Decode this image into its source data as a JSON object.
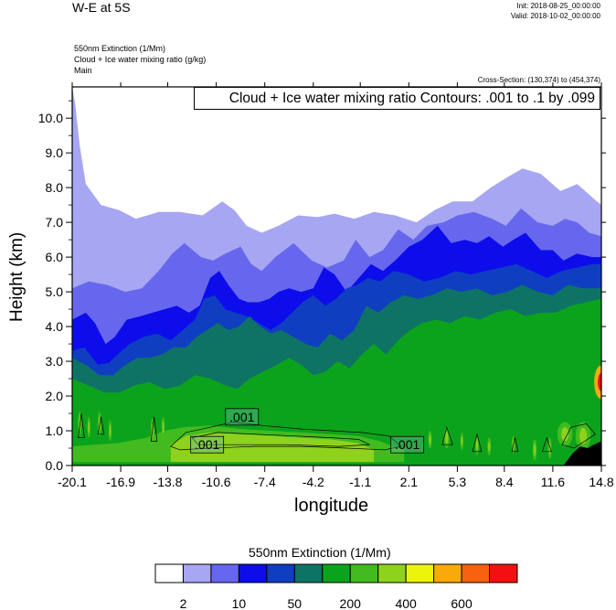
{
  "header": {
    "title": "W-E at 5S",
    "init": "Init: 2018-08-25_00:00:00",
    "valid": "Valid: 2018-10-02_00:00:00",
    "field_lines": [
      "550nm Extinction   (1/Mm)",
      "Cloud + Ice water mixing ratio   (g/kg)",
      "Main"
    ],
    "cross_section": "Cross-Section: (130,374) to (454,374)",
    "contour_info": "Cloud + Ice water mixing ratio Contours: .001 to .1 by .099"
  },
  "chart_data": {
    "type": "heatmap",
    "xlabel": "longitude",
    "ylabel": "Height (km)",
    "xlim": [
      -20.1,
      14.8
    ],
    "ylim": [
      0.0,
      10.9
    ],
    "x_ticks": [
      "-20.1",
      "-16.9",
      "-13.8",
      "-10.6",
      "-7.4",
      "-4.2",
      "-1.1",
      "2.1",
      "5.3",
      "8.4",
      "11.6",
      "14.8"
    ],
    "y_ticks": [
      "0.0",
      "1.0",
      "2.0",
      "3.0",
      "4.0",
      "5.0",
      "6.0",
      "7.0",
      "8.0",
      "9.0",
      "10.0"
    ],
    "contour_labels": [
      {
        "text": ".001",
        "x": -8.9,
        "y": 1.4
      },
      {
        "text": ".001",
        "x": -11.2,
        "y": 0.6
      },
      {
        "text": ".001",
        "x": 2.0,
        "y": 0.6
      }
    ],
    "colorbar": {
      "title": "550nm Extinction  (1/Mm)",
      "colors": [
        "#ffffff",
        "#a6a6f2",
        "#6767ee",
        "#0d0deb",
        "#0f3fc0",
        "#0e7364",
        "#0ca31c",
        "#42bb1e",
        "#8ed21d",
        "#ecf40c",
        "#f8aa0b",
        "#f6620f",
        "#f40f12"
      ],
      "labels": [
        "2",
        "10",
        "50",
        "200",
        "400",
        "600"
      ]
    },
    "layers": [
      {
        "name": "white",
        "color": "#ffffff",
        "top": [
          [
            -20.1,
            10.9
          ],
          [
            14.8,
            10.9
          ]
        ]
      },
      {
        "name": "lavender",
        "color": "#a6a6f2",
        "top": [
          [
            -20.1,
            10.9
          ],
          [
            -19.9,
            10.4
          ],
          [
            -19.6,
            9.2
          ],
          [
            -19.2,
            8.1
          ],
          [
            -18.2,
            7.5
          ],
          [
            -17.0,
            7.35
          ],
          [
            -15.9,
            7.1
          ],
          [
            -14.4,
            7.3
          ],
          [
            -13.0,
            7.3
          ],
          [
            -11.5,
            7.2
          ],
          [
            -10.2,
            7.6
          ],
          [
            -9.4,
            7.35
          ],
          [
            -8.6,
            6.9
          ],
          [
            -7.6,
            6.7
          ],
          [
            -6.5,
            6.9
          ],
          [
            -5.2,
            7.2
          ],
          [
            -3.9,
            7.15
          ],
          [
            -2.8,
            7.25
          ],
          [
            -1.5,
            7.1
          ],
          [
            -0.2,
            7.3
          ],
          [
            1.2,
            7.2
          ],
          [
            2.6,
            7.0
          ],
          [
            3.8,
            7.35
          ],
          [
            5.0,
            7.6
          ],
          [
            6.3,
            7.6
          ],
          [
            7.5,
            8.0
          ],
          [
            8.6,
            8.3
          ],
          [
            9.6,
            8.55
          ],
          [
            10.8,
            8.4
          ],
          [
            12.1,
            7.9
          ],
          [
            13.2,
            8.1
          ],
          [
            14.0,
            7.8
          ],
          [
            14.5,
            7.6
          ],
          [
            14.8,
            7.5
          ]
        ]
      },
      {
        "name": "medium-blue",
        "color": "#6767ee",
        "top": [
          [
            -20.1,
            5.1
          ],
          [
            -19.0,
            5.3
          ],
          [
            -17.8,
            5.2
          ],
          [
            -16.6,
            5.0
          ],
          [
            -15.5,
            5.1
          ],
          [
            -14.4,
            5.6
          ],
          [
            -13.5,
            6.1
          ],
          [
            -12.7,
            6.4
          ],
          [
            -11.6,
            6.0
          ],
          [
            -10.8,
            5.9
          ],
          [
            -10.0,
            6.1
          ],
          [
            -9.0,
            6.3
          ],
          [
            -8.3,
            5.8
          ],
          [
            -7.6,
            5.6
          ],
          [
            -6.7,
            6.0
          ],
          [
            -5.5,
            6.4
          ],
          [
            -4.3,
            5.9
          ],
          [
            -3.3,
            5.7
          ],
          [
            -2.2,
            5.9
          ],
          [
            -1.4,
            6.5
          ],
          [
            -0.5,
            6.0
          ],
          [
            0.4,
            6.2
          ],
          [
            1.4,
            6.8
          ],
          [
            2.4,
            6.5
          ],
          [
            3.3,
            6.9
          ],
          [
            4.4,
            7.0
          ],
          [
            5.3,
            7.2
          ],
          [
            6.4,
            7.3
          ],
          [
            7.6,
            7.1
          ],
          [
            8.5,
            6.9
          ],
          [
            9.5,
            7.4
          ],
          [
            10.6,
            7.0
          ],
          [
            11.6,
            6.9
          ],
          [
            12.4,
            7.1
          ],
          [
            13.2,
            7.0
          ],
          [
            14.0,
            6.7
          ],
          [
            14.8,
            6.6
          ]
        ]
      },
      {
        "name": "blue",
        "color": "#0d0deb",
        "top": [
          [
            -20.1,
            4.2
          ],
          [
            -19.2,
            4.4
          ],
          [
            -18.6,
            4.1
          ],
          [
            -17.9,
            3.5
          ],
          [
            -17.3,
            3.7
          ],
          [
            -16.5,
            4.2
          ],
          [
            -15.6,
            4.3
          ],
          [
            -14.8,
            4.4
          ],
          [
            -14.0,
            4.5
          ],
          [
            -13.2,
            4.6
          ],
          [
            -12.4,
            4.4
          ],
          [
            -11.7,
            4.6
          ],
          [
            -11.0,
            5.4
          ],
          [
            -10.4,
            5.6
          ],
          [
            -9.8,
            5.2
          ],
          [
            -9.1,
            4.8
          ],
          [
            -8.5,
            4.7
          ],
          [
            -7.8,
            4.7
          ],
          [
            -7.1,
            4.8
          ],
          [
            -6.5,
            5.0
          ],
          [
            -5.8,
            5.1
          ],
          [
            -5.0,
            5.0
          ],
          [
            -4.2,
            5.1
          ],
          [
            -3.5,
            5.7
          ],
          [
            -2.8,
            5.5
          ],
          [
            -2.0,
            5.0
          ],
          [
            -1.2,
            5.4
          ],
          [
            -0.4,
            5.8
          ],
          [
            0.4,
            5.6
          ],
          [
            1.2,
            5.9
          ],
          [
            2.1,
            6.3
          ],
          [
            3.0,
            6.5
          ],
          [
            4.0,
            6.9
          ],
          [
            4.9,
            6.4
          ],
          [
            5.8,
            6.5
          ],
          [
            6.6,
            6.4
          ],
          [
            7.4,
            6.6
          ],
          [
            8.3,
            6.3
          ],
          [
            9.0,
            6.5
          ],
          [
            9.8,
            6.7
          ],
          [
            10.8,
            6.2
          ],
          [
            11.6,
            6.2
          ],
          [
            12.3,
            5.9
          ],
          [
            13.2,
            6.1
          ],
          [
            14.2,
            6.0
          ],
          [
            14.8,
            6.0
          ]
        ]
      },
      {
        "name": "navy",
        "color": "#0f3fc0",
        "top": [
          [
            -20.1,
            3.3
          ],
          [
            -19.3,
            3.4
          ],
          [
            -18.4,
            2.9
          ],
          [
            -17.7,
            2.95
          ],
          [
            -17.1,
            3.2
          ],
          [
            -16.3,
            3.5
          ],
          [
            -15.4,
            3.7
          ],
          [
            -14.5,
            3.8
          ],
          [
            -13.6,
            3.6
          ],
          [
            -12.8,
            3.9
          ],
          [
            -12.0,
            4.2
          ],
          [
            -11.4,
            4.8
          ],
          [
            -10.7,
            4.9
          ],
          [
            -10.0,
            4.5
          ],
          [
            -9.3,
            4.4
          ],
          [
            -8.6,
            4.3
          ],
          [
            -7.8,
            4.1
          ],
          [
            -7.0,
            3.9
          ],
          [
            -6.3,
            4.1
          ],
          [
            -5.6,
            4.4
          ],
          [
            -4.9,
            4.7
          ],
          [
            -4.2,
            4.9
          ],
          [
            -3.4,
            4.6
          ],
          [
            -2.7,
            4.8
          ],
          [
            -2.0,
            5.1
          ],
          [
            -1.3,
            5.2
          ],
          [
            -0.6,
            5.4
          ],
          [
            0.2,
            5.3
          ],
          [
            1.1,
            5.6
          ],
          [
            2.1,
            5.5
          ],
          [
            3.1,
            5.3
          ],
          [
            4.1,
            5.4
          ],
          [
            5.2,
            5.6
          ],
          [
            6.2,
            5.5
          ],
          [
            7.2,
            5.6
          ],
          [
            8.2,
            5.7
          ],
          [
            9.2,
            5.8
          ],
          [
            10.2,
            5.6
          ],
          [
            11.2,
            5.4
          ],
          [
            12.2,
            5.6
          ],
          [
            13.2,
            5.7
          ],
          [
            14.2,
            5.8
          ],
          [
            14.8,
            5.8
          ]
        ]
      },
      {
        "name": "teal",
        "color": "#0e7364",
        "top": [
          [
            -20.1,
            3.1
          ],
          [
            -19.2,
            2.9
          ],
          [
            -18.3,
            2.6
          ],
          [
            -17.4,
            2.6
          ],
          [
            -16.6,
            2.9
          ],
          [
            -15.8,
            3.1
          ],
          [
            -15.0,
            3.1
          ],
          [
            -14.2,
            3.2
          ],
          [
            -13.4,
            3.4
          ],
          [
            -12.6,
            3.4
          ],
          [
            -11.9,
            3.7
          ],
          [
            -11.2,
            3.9
          ],
          [
            -10.5,
            4.1
          ],
          [
            -9.8,
            3.9
          ],
          [
            -9.1,
            4.0
          ],
          [
            -8.4,
            4.3
          ],
          [
            -7.7,
            4.0
          ],
          [
            -7.0,
            3.8
          ],
          [
            -6.3,
            3.9
          ],
          [
            -5.5,
            3.7
          ],
          [
            -4.7,
            3.5
          ],
          [
            -3.9,
            3.4
          ],
          [
            -3.1,
            3.8
          ],
          [
            -2.3,
            3.6
          ],
          [
            -1.5,
            3.9
          ],
          [
            -0.7,
            4.6
          ],
          [
            0.1,
            4.4
          ],
          [
            0.9,
            4.7
          ],
          [
            1.8,
            4.9
          ],
          [
            2.7,
            4.8
          ],
          [
            3.6,
            4.9
          ],
          [
            4.6,
            5.1
          ],
          [
            5.6,
            5.0
          ],
          [
            6.6,
            5.1
          ],
          [
            7.6,
            4.9
          ],
          [
            8.6,
            5.0
          ],
          [
            9.6,
            5.2
          ],
          [
            10.6,
            5.0
          ],
          [
            11.6,
            4.9
          ],
          [
            12.6,
            5.2
          ],
          [
            13.6,
            5.1
          ],
          [
            14.8,
            5.1
          ]
        ]
      },
      {
        "name": "green",
        "color": "#0ca31c",
        "top": [
          [
            -20.1,
            2.5
          ],
          [
            -19.0,
            2.3
          ],
          [
            -18.0,
            2.1
          ],
          [
            -17.0,
            2.1
          ],
          [
            -16.0,
            2.3
          ],
          [
            -15.0,
            2.4
          ],
          [
            -14.0,
            2.2
          ],
          [
            -13.0,
            2.3
          ],
          [
            -12.0,
            2.6
          ],
          [
            -11.0,
            2.5
          ],
          [
            -10.0,
            2.3
          ],
          [
            -9.2,
            2.2
          ],
          [
            -8.4,
            2.5
          ],
          [
            -7.5,
            2.7
          ],
          [
            -6.6,
            2.9
          ],
          [
            -5.8,
            3.1
          ],
          [
            -5.0,
            2.9
          ],
          [
            -4.2,
            2.6
          ],
          [
            -3.4,
            2.7
          ],
          [
            -2.6,
            3.0
          ],
          [
            -1.8,
            2.8
          ],
          [
            -1.0,
            3.2
          ],
          [
            -0.2,
            3.5
          ],
          [
            0.6,
            3.2
          ],
          [
            1.4,
            3.6
          ],
          [
            2.2,
            3.9
          ],
          [
            3.0,
            4.1
          ],
          [
            3.9,
            4.2
          ],
          [
            4.8,
            4.1
          ],
          [
            5.8,
            4.3
          ],
          [
            6.8,
            4.2
          ],
          [
            7.8,
            4.4
          ],
          [
            8.8,
            4.5
          ],
          [
            9.8,
            4.3
          ],
          [
            10.8,
            4.4
          ],
          [
            11.8,
            4.4
          ],
          [
            12.8,
            4.6
          ],
          [
            13.8,
            4.7
          ],
          [
            14.8,
            4.8
          ]
        ]
      },
      {
        "name": "light-green",
        "color": "#42bb1e",
        "top": [
          [
            -20.1,
            0.55
          ],
          [
            -17.0,
            0.65
          ],
          [
            -15.2,
            0.8
          ],
          [
            -14.0,
            1.0
          ],
          [
            -12.8,
            1.1
          ],
          [
            -11.0,
            1.15
          ],
          [
            -9.0,
            1.05
          ],
          [
            -7.0,
            1.0
          ],
          [
            -5.0,
            0.95
          ],
          [
            -3.0,
            0.9
          ],
          [
            -1.2,
            0.85
          ],
          [
            0.2,
            0.7
          ],
          [
            1.0,
            0.55
          ],
          [
            1.8,
            0.45
          ]
        ]
      },
      {
        "name": "yellow-green",
        "color": "#8ed21d",
        "top": [
          [
            -13.6,
            0.6
          ],
          [
            -12.6,
            0.85
          ],
          [
            -11.0,
            0.95
          ],
          [
            -9.0,
            0.9
          ],
          [
            -7.0,
            0.85
          ],
          [
            -5.0,
            0.8
          ],
          [
            -3.0,
            0.75
          ],
          [
            -1.3,
            0.65
          ],
          [
            -0.2,
            0.45
          ]
        ]
      }
    ]
  }
}
